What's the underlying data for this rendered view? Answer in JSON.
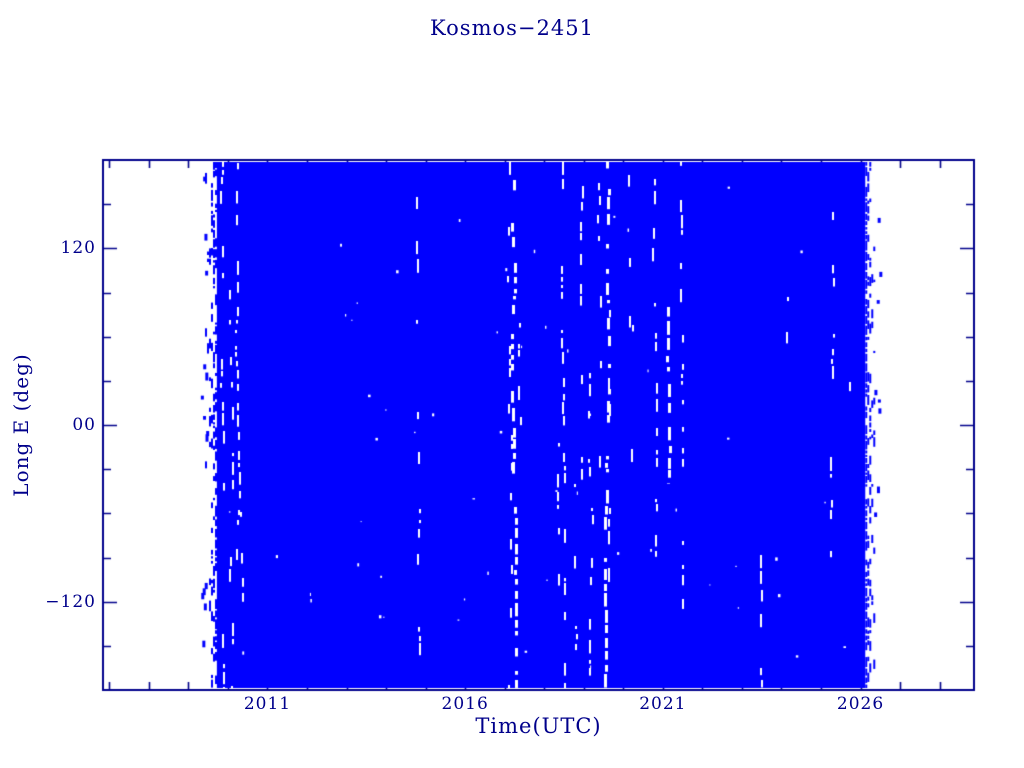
{
  "title": "Kosmos−2451",
  "axes": {
    "xlabel": "Time(UTC)",
    "ylabel": "Long E (deg)",
    "x_tick_labels": [
      "2011",
      "2016",
      "2021",
      "2026"
    ],
    "y_tick_labels": [
      "120",
      "00",
      "−120"
    ]
  },
  "chart_data": {
    "type": "scatter",
    "title": "Kosmos−2451",
    "xlabel": "Time(UTC)",
    "ylabel": "Long E (deg)",
    "xlim": [
      2006.84,
      2028.87
    ],
    "ylim": [
      -180,
      180
    ],
    "x_major_ticks": [
      2011,
      2016,
      2021,
      2026
    ],
    "x_major_tick_labels": [
      "2011",
      "2016",
      "2021",
      "2026"
    ],
    "x_minor_tick_step_years": 1,
    "y_major_ticks": [
      120,
      0,
      -120
    ],
    "y_major_tick_labels": [
      "120",
      "00",
      "−120"
    ],
    "y_minor_tick_step_deg": 30,
    "grid": false,
    "legend": false,
    "description": "Sub-satellite longitude of Kosmos-2451 versus time; the ground track sweeps all longitudes every orbit so the densely sampled series fills the band from 2009.5 to 2026.2 as solid blue, broken by narrow white vertical gaps (data outages).",
    "band": {
      "start_year": 2009.42,
      "solid_start_year": 2009.72,
      "solid_end_year": 2026.12,
      "end_year": 2026.35,
      "from_deg": -180,
      "to_deg": 180
    },
    "gaps": [
      {
        "year": 2009.86,
        "from_deg": 180,
        "to_deg": -180,
        "density": 0.4,
        "width": 2
      },
      {
        "year": 2010.05,
        "from_deg": 120,
        "to_deg": -180,
        "density": 0.3,
        "width": 2
      },
      {
        "year": 2010.22,
        "from_deg": 178,
        "to_deg": -100,
        "density": 0.55,
        "width": 2
      },
      {
        "year": 2010.3,
        "from_deg": -40,
        "to_deg": -180,
        "density": 0.3,
        "width": 2
      },
      {
        "year": 2014.8,
        "from_deg": 180,
        "to_deg": -180,
        "density": 0.32,
        "width": 2
      },
      {
        "year": 2017.1,
        "from_deg": 180,
        "to_deg": -180,
        "density": 0.3,
        "width": 2
      },
      {
        "year": 2017.2,
        "from_deg": 180,
        "to_deg": -180,
        "density": 0.75,
        "width": 3
      },
      {
        "year": 2017.38,
        "from_deg": 125,
        "to_deg": -75,
        "density": 0.3,
        "width": 2
      },
      {
        "year": 2018.35,
        "from_deg": 25,
        "to_deg": -110,
        "density": 0.35,
        "width": 2
      },
      {
        "year": 2018.45,
        "from_deg": 180,
        "to_deg": -180,
        "density": 0.45,
        "width": 2
      },
      {
        "year": 2018.75,
        "from_deg": -40,
        "to_deg": -180,
        "density": 0.25,
        "width": 2
      },
      {
        "year": 2018.96,
        "from_deg": 180,
        "to_deg": -70,
        "density": 0.3,
        "width": 2
      },
      {
        "year": 2019.16,
        "from_deg": 45,
        "to_deg": -180,
        "density": 0.35,
        "width": 2
      },
      {
        "year": 2019.36,
        "from_deg": 170,
        "to_deg": -40,
        "density": 0.3,
        "width": 2
      },
      {
        "year": 2019.55,
        "from_deg": 180,
        "to_deg": -180,
        "density": 0.7,
        "width": 3
      },
      {
        "year": 2019.66,
        "from_deg": 100,
        "to_deg": -180,
        "density": 0.35,
        "width": 2
      },
      {
        "year": 2020.11,
        "from_deg": 170,
        "to_deg": 55,
        "density": 0.18,
        "width": 2
      },
      {
        "year": 2020.24,
        "from_deg": 140,
        "to_deg": -25,
        "density": 0.2,
        "width": 2
      },
      {
        "year": 2020.77,
        "from_deg": 180,
        "to_deg": -90,
        "density": 0.45,
        "width": 2
      },
      {
        "year": 2021.1,
        "from_deg": 80,
        "to_deg": -40,
        "density": 0.8,
        "width": 3
      },
      {
        "year": 2021.43,
        "from_deg": 180,
        "to_deg": -125,
        "density": 0.5,
        "width": 2
      },
      {
        "year": 2023.45,
        "from_deg": -88,
        "to_deg": -180,
        "density": 0.5,
        "width": 2
      },
      {
        "year": 2024.13,
        "from_deg": 115,
        "to_deg": 55,
        "density": 0.5,
        "width": 2
      },
      {
        "year": 2025.27,
        "from_deg": 145,
        "to_deg": -105,
        "density": 0.45,
        "width": 2
      },
      {
        "year": 2025.65,
        "from_deg": 60,
        "to_deg": 15,
        "density": 0.2,
        "width": 2
      }
    ],
    "colors": {
      "data": "#0000FF",
      "axis": "#00008B",
      "background": "#FFFFFF"
    }
  }
}
